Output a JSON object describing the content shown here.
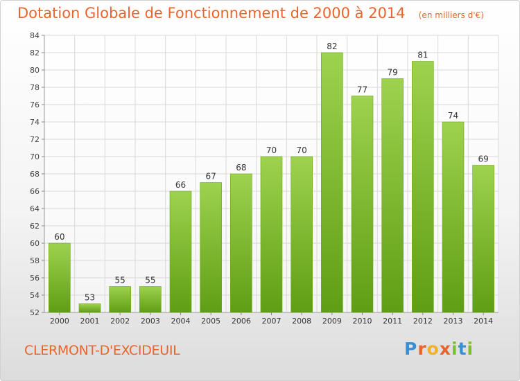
{
  "header": {
    "title": "Dotation Globale de Fonctionnement de 2000 à 2014",
    "unit": "(en milliers d'€)"
  },
  "footer": {
    "commune": "CLERMONT-D'EXCIDEUIL",
    "logo_text": "Proxiti"
  },
  "colors": {
    "bar_light": "#9ed24e",
    "bar_dark": "#5f9e14",
    "title": "#e8642c",
    "grid": "#d9d9d9"
  },
  "chart_data": {
    "type": "bar",
    "title": "Dotation Globale de Fonctionnement de 2000 à 2014",
    "subtitle": "(en milliers d'€)",
    "xlabel": "",
    "ylabel": "",
    "categories": [
      "2000",
      "2001",
      "2002",
      "2003",
      "2004",
      "2005",
      "2006",
      "2007",
      "2008",
      "2009",
      "2010",
      "2011",
      "2012",
      "2013",
      "2014"
    ],
    "values": [
      60,
      53,
      55,
      55,
      66,
      67,
      68,
      70,
      70,
      82,
      77,
      79,
      81,
      74,
      69
    ],
    "ylim": [
      52,
      84
    ],
    "yticks": [
      52,
      54,
      56,
      58,
      60,
      62,
      64,
      66,
      68,
      70,
      72,
      74,
      76,
      78,
      80,
      82,
      84
    ],
    "grid": true,
    "data_labels": true,
    "legend": "none"
  }
}
